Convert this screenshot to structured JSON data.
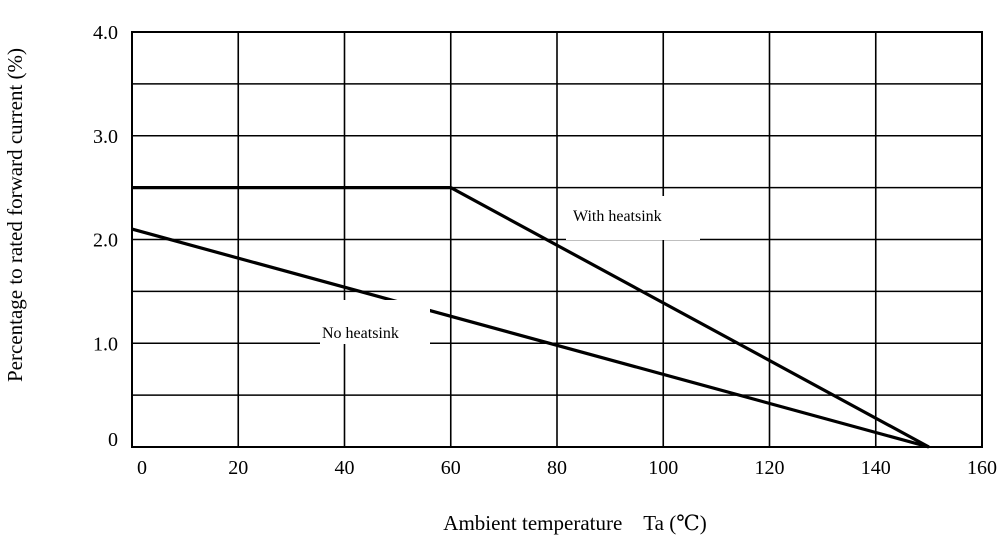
{
  "chart_data": {
    "type": "line",
    "title": "",
    "xlabel": "Ambient temperature　Ta (℃)",
    "ylabel": "Percentage to rated forward current (%)",
    "xlim": [
      0,
      150
    ],
    "ylim": [
      0,
      4.0
    ],
    "x_ticks": [
      0,
      20,
      40,
      60,
      80,
      100,
      120,
      140,
      160
    ],
    "y_ticks": [
      0,
      1.0,
      2.0,
      3.0,
      4.0
    ],
    "x_tick_labels": [
      "0",
      "20",
      "40",
      "60",
      "80",
      "100",
      "120",
      "140",
      "160"
    ],
    "y_tick_labels": [
      "0",
      "1.0",
      "2.0",
      "3.0",
      "4.0"
    ],
    "grid": true,
    "series": [
      {
        "name": "With heatsink",
        "x": [
          0,
          60,
          150
        ],
        "y": [
          2.5,
          2.5,
          0
        ]
      },
      {
        "name": "No heatsink",
        "x": [
          0,
          150
        ],
        "y": [
          2.1,
          0
        ]
      }
    ]
  }
}
